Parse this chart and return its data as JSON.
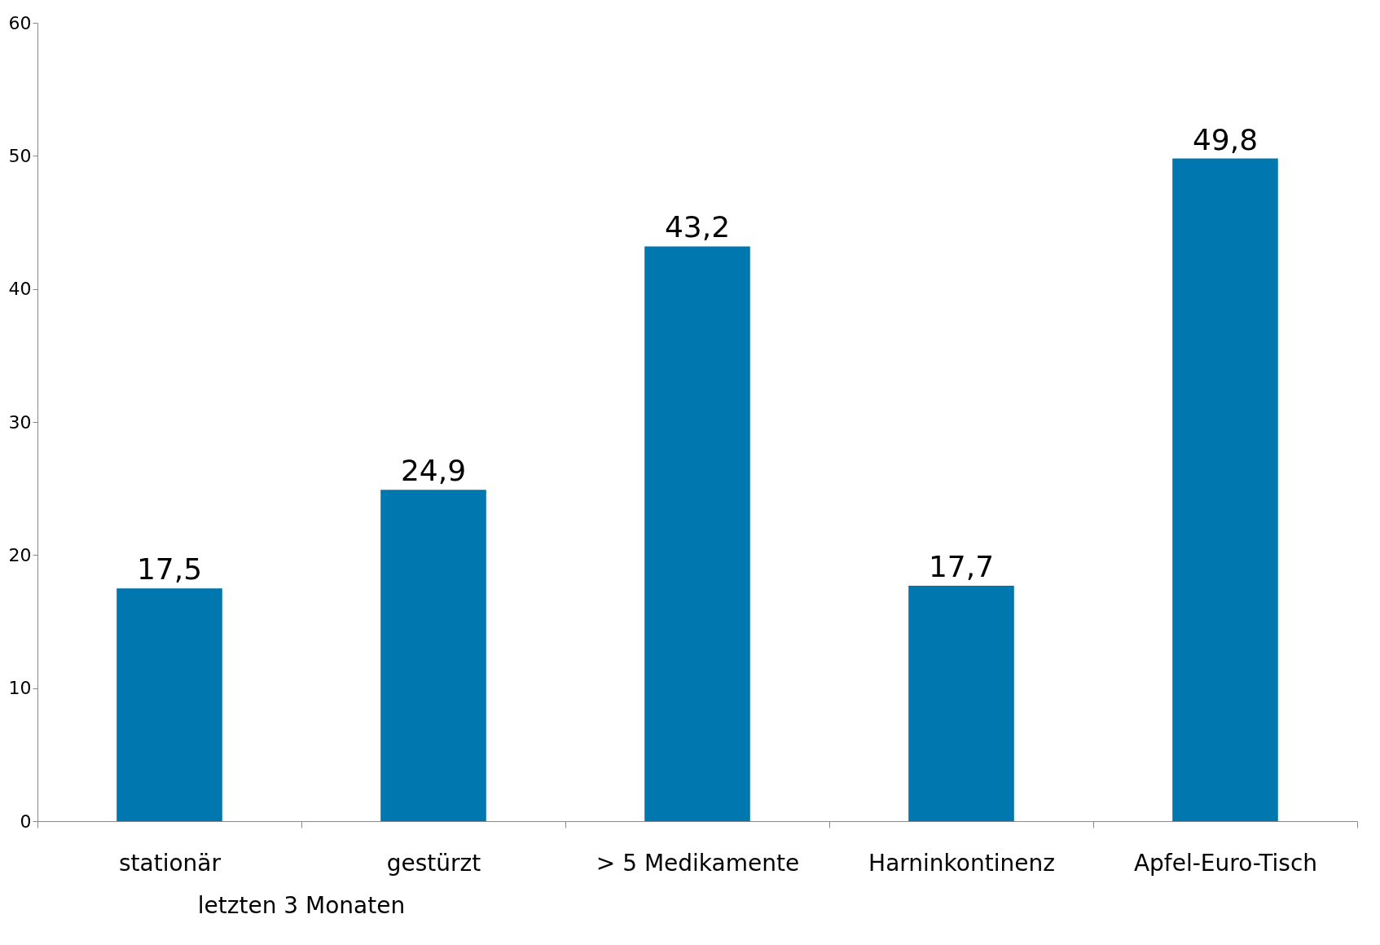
{
  "chart_data": {
    "type": "bar",
    "categories": [
      "stationär",
      "gestürzt",
      "> 5 Medikamente",
      "Harninkontinenz",
      "Apfel-Euro-Tisch"
    ],
    "values": [
      17.5,
      24.9,
      43.2,
      17.7,
      49.8
    ],
    "value_labels": [
      "17,5",
      "24,9",
      "43,2",
      "17,7",
      "49,8"
    ],
    "color": "#0077ae",
    "ylim": [
      0,
      60
    ],
    "yticks": [
      0,
      10,
      20,
      30,
      40,
      50,
      60
    ],
    "grid": false,
    "annotations": [
      "letzten 3 Monaten"
    ]
  }
}
